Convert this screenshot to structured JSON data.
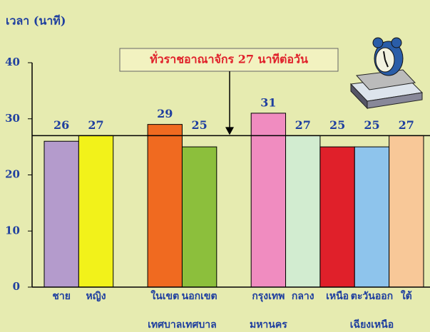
{
  "chart_data": {
    "type": "bar",
    "y_label": "เวลา (นาที)",
    "categories": [
      "ชาย",
      "หญิง",
      null,
      [
        "ในเขต",
        "เทศบาล"
      ],
      [
        "นอกเขต",
        "เทศบาล"
      ],
      null,
      [
        "กรุงเทพ",
        "มหานคร"
      ],
      "กลาง",
      "เหนือ",
      [
        "ตะวันออก",
        "เฉียงเหนือ"
      ],
      "ใต้"
    ],
    "values": [
      26,
      27,
      null,
      29,
      25,
      null,
      31,
      27,
      25,
      25,
      27
    ],
    "colors": [
      "#b49bcc",
      "#f2f21a",
      null,
      "#f06a20",
      "#8cbf3c",
      null,
      "#f08cc0",
      "#d2ecd0",
      "#e0202a",
      "#8ec4ec",
      "#f8c898"
    ],
    "ylim": [
      0,
      40
    ],
    "yticks": [
      0,
      10,
      20,
      30,
      40
    ],
    "grid": false,
    "reference_line": {
      "value": 27,
      "label": "ทั่วราชอาณาจักร 27 นาทีต่อวัน"
    }
  }
}
